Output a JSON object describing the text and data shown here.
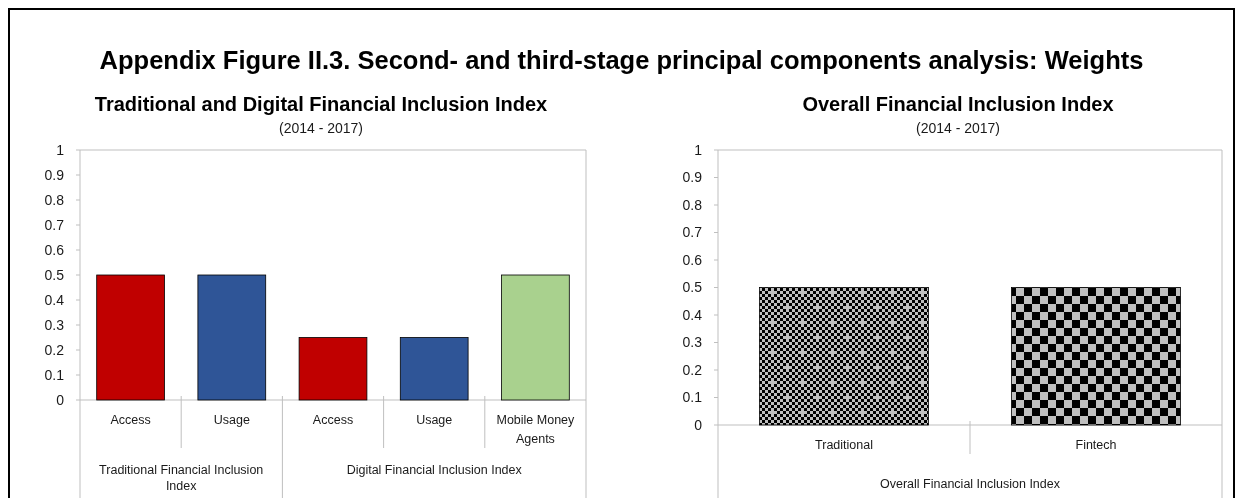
{
  "chart_data": [
    {
      "type": "other",
      "title": "Appendix Figure II.3. Second- and third-stage principal components analysis: Weights"
    },
    {
      "type": "bar",
      "title": "Traditional and Digital Financial Inclusion Index",
      "subtitle": "(2014 - 2017)",
      "categories": [
        "Traditional Financial Inclusion Index",
        "Digital Financial Inclusion Index"
      ],
      "series": [
        {
          "name": "Access",
          "color": "#c00000",
          "values": [
            0.5,
            0.25
          ]
        },
        {
          "name": "Usage",
          "color": "#2f5597",
          "values": [
            0.5,
            0.25
          ]
        },
        {
          "name": "Mobile Money Agents",
          "color": "#a9d18e",
          "values": [
            null,
            0.5
          ]
        }
      ],
      "ylim": [
        0,
        1
      ],
      "yticks": [
        0,
        0.1,
        0.2,
        0.3,
        0.4,
        0.5,
        0.6,
        0.7,
        0.8,
        0.9,
        1
      ]
    },
    {
      "type": "bar",
      "title": "Overall Financial Inclusion Index",
      "subtitle": "(2014 - 2017)",
      "xlabel": "Overall Financial Inclusion Index",
      "categories": [
        "Traditional",
        "Fintech"
      ],
      "colors": [
        "#000000",
        "#000000"
      ],
      "values": [
        0.5,
        0.5
      ],
      "ylim": [
        0,
        1
      ],
      "yticks": [
        0,
        0.1,
        0.2,
        0.3,
        0.4,
        0.5,
        0.6,
        0.7,
        0.8,
        0.9,
        1
      ]
    }
  ]
}
